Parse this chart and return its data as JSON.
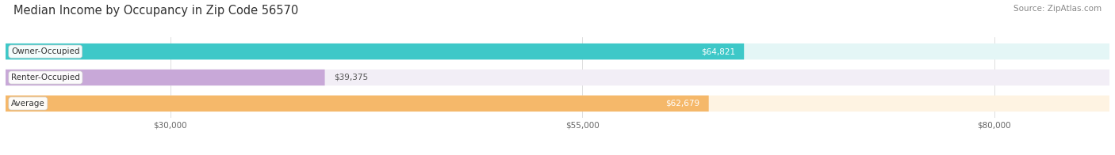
{
  "title": "Median Income by Occupancy in Zip Code 56570",
  "source": "Source: ZipAtlas.com",
  "categories": [
    "Owner-Occupied",
    "Renter-Occupied",
    "Average"
  ],
  "values": [
    64821,
    39375,
    62679
  ],
  "bar_colors": [
    "#3ec8c8",
    "#c8a8d8",
    "#f5b86a"
  ],
  "bar_bg_colors": [
    "#e4f6f6",
    "#f2eef6",
    "#fef3e2"
  ],
  "label_colors": [
    "white",
    "#666666",
    "white"
  ],
  "x_ticks": [
    30000,
    55000,
    80000
  ],
  "x_tick_labels": [
    "$30,000",
    "$55,000",
    "$80,000"
  ],
  "xlim_left": 20000,
  "xlim_right": 87000,
  "title_fontsize": 10.5,
  "source_fontsize": 7.5,
  "bar_label_fontsize": 7.5,
  "category_fontsize": 7.5,
  "tick_fontsize": 7.5,
  "background_color": "#ffffff",
  "bar_height": 0.62
}
